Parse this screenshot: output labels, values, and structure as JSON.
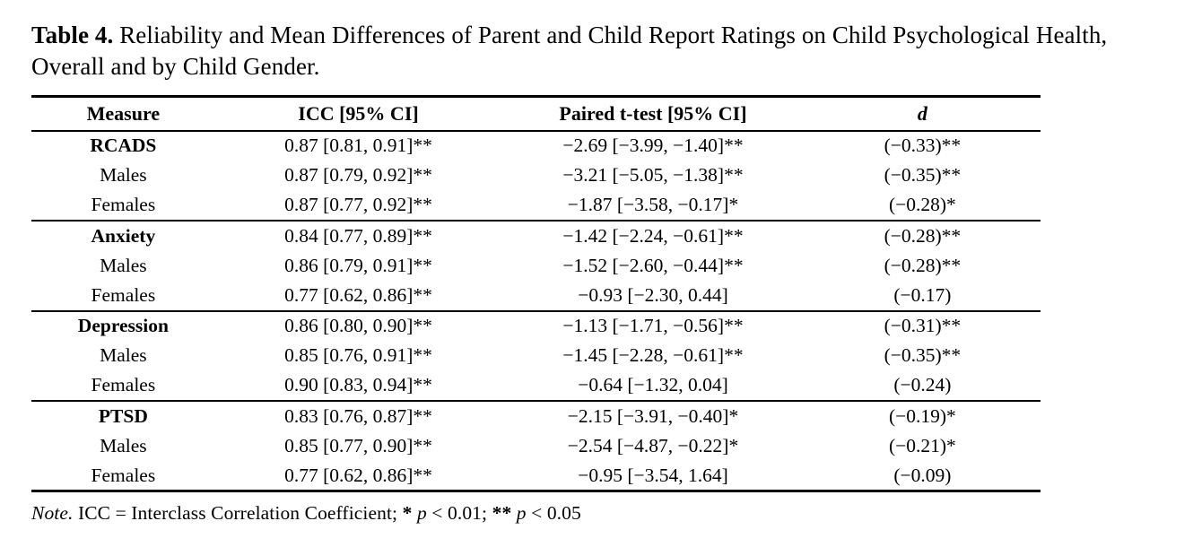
{
  "caption": {
    "label": "Table 4.",
    "text": "Reliability and Mean Differences of Parent and Child Report Ratings on Child Psychological Health, Overall and by Child Gender."
  },
  "table": {
    "headers": [
      "Measure",
      "ICC [95% CI]",
      "Paired t-test [95% CI]",
      "d"
    ],
    "rows": [
      {
        "measure": "RCADS",
        "icc": "0.87 [0.81, 0.91]**",
        "t": "−2.69 [−3.99, −1.40]**",
        "d": "(−0.33)**"
      },
      {
        "measure": "Males",
        "icc": "0.87 [0.79, 0.92]**",
        "t": "−3.21 [−5.05, −1.38]**",
        "d": "(−0.35)**"
      },
      {
        "measure": "Females",
        "icc": "0.87 [0.77, 0.92]**",
        "t": "−1.87 [−3.58, −0.17]*",
        "d": "(−0.28)*"
      },
      {
        "measure": "Anxiety",
        "icc": "0.84 [0.77, 0.89]**",
        "t": "−1.42 [−2.24, −0.61]**",
        "d": "(−0.28)**"
      },
      {
        "measure": "Males",
        "icc": "0.86 [0.79, 0.91]**",
        "t": "−1.52 [−2.60, −0.44]**",
        "d": "(−0.28)**"
      },
      {
        "measure": "Females",
        "icc": "0.77 [0.62, 0.86]**",
        "t": "−0.93 [−2.30, 0.44]",
        "d": "(−0.17)"
      },
      {
        "measure": "Depression",
        "icc": "0.86 [0.80, 0.90]**",
        "t": "−1.13 [−1.71, −0.56]**",
        "d": "(−0.31)**"
      },
      {
        "measure": "Males",
        "icc": "0.85 [0.76, 0.91]**",
        "t": "−1.45 [−2.28, −0.61]**",
        "d": "(−0.35)**"
      },
      {
        "measure": "Females",
        "icc": "0.90 [0.83, 0.94]**",
        "t": "−0.64 [−1.32, 0.04]",
        "d": "(−0.24)"
      },
      {
        "measure": "PTSD",
        "icc": "0.83 [0.76, 0.87]**",
        "t": "−2.15 [−3.91, −0.40]*",
        "d": "(−0.19)*"
      },
      {
        "measure": "Males",
        "icc": "0.85 [0.77, 0.90]**",
        "t": "−2.54 [−4.87, −0.22]*",
        "d": "(−0.21)*"
      },
      {
        "measure": "Females",
        "icc": "0.77 [0.62, 0.86]**",
        "t": "−0.95 [−3.54, 1.64]",
        "d": "(−0.09)"
      }
    ]
  },
  "note": {
    "label": "Note.",
    "body": "ICC = Interclass Correlation Coefficient;",
    "sig1_star": "*",
    "sig1_p": "p",
    "sig1_val": "< 0.01;",
    "sig2_star": "**",
    "sig2_p": "p",
    "sig2_val": "< 0.05"
  },
  "colors": {
    "text": "#000000",
    "background": "#ffffff"
  }
}
